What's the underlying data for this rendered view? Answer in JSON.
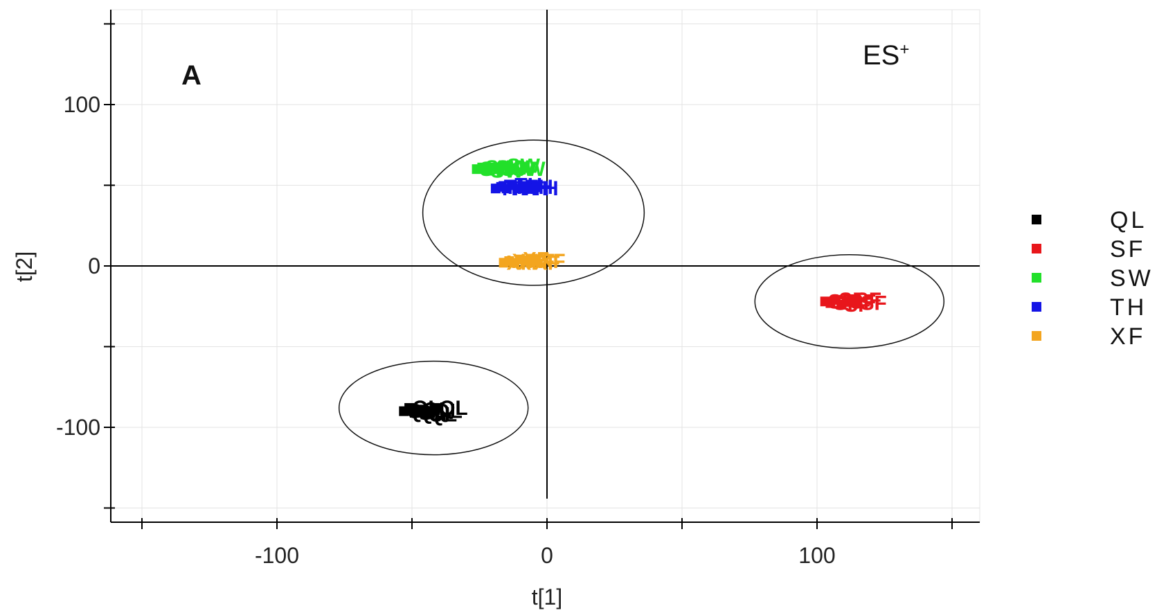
{
  "chart_data": {
    "type": "scatter",
    "panel_label": "A",
    "mode_label": {
      "base": "ES",
      "superscript": "+"
    },
    "xlabel": "t[1]",
    "ylabel": "t[2]",
    "xlim": [
      -160,
      160
    ],
    "ylim": [
      -160,
      160
    ],
    "x_ticks": [
      -100,
      0,
      100
    ],
    "y_ticks": [
      100,
      0,
      -100
    ],
    "x_tick_labels": [
      "-100",
      "0",
      "100"
    ],
    "y_tick_labels": [
      "100",
      "0",
      "-100"
    ],
    "x_minor_ticks": [
      -150,
      -50,
      50,
      150
    ],
    "y_minor_ticks": [
      150,
      50,
      -50,
      -150
    ],
    "grid": true,
    "legend_position": "right",
    "series": [
      {
        "name": "QL",
        "color": "#000000",
        "points": [
          [
            -53,
            -90
          ],
          [
            -51,
            -88
          ],
          [
            -49,
            -91
          ],
          [
            -47,
            -89
          ],
          [
            -45,
            -92
          ],
          [
            -43,
            -90
          ],
          [
            -41,
            -88
          ]
        ],
        "ellipse": {
          "cx": -42,
          "cy": -88,
          "rx": 35,
          "ry": 29
        }
      },
      {
        "name": "SF",
        "color": "#e8161b",
        "points": [
          [
            103,
            -22
          ],
          [
            105,
            -23
          ],
          [
            107,
            -21
          ],
          [
            109,
            -24
          ],
          [
            111,
            -22
          ],
          [
            113,
            -21
          ],
          [
            115,
            -23
          ]
        ],
        "ellipse": {
          "cx": 112,
          "cy": -22,
          "rx": 35,
          "ry": 29
        }
      },
      {
        "name": "SW",
        "color": "#22e02a",
        "points": [
          [
            -26,
            60
          ],
          [
            -24,
            61
          ],
          [
            -22,
            59
          ],
          [
            -20,
            61
          ],
          [
            -18,
            60
          ],
          [
            -16,
            62
          ],
          [
            -14,
            60
          ]
        ],
        "ellipse": null
      },
      {
        "name": "TH",
        "color": "#1414e6",
        "points": [
          [
            -19,
            48
          ],
          [
            -17,
            49
          ],
          [
            -15,
            48
          ],
          [
            -13,
            50
          ],
          [
            -11,
            48
          ],
          [
            -9,
            49
          ],
          [
            -7,
            48
          ]
        ],
        "ellipse": null
      },
      {
        "name": "XF",
        "color": "#f3a51f",
        "points": [
          [
            -16,
            2
          ],
          [
            -14,
            3
          ],
          [
            -12,
            2
          ],
          [
            -10,
            4
          ],
          [
            -8,
            3
          ],
          [
            -6,
            2
          ],
          [
            -4,
            3
          ]
        ],
        "ellipse": {
          "cx": -5,
          "cy": 33,
          "rx": 41,
          "ry": 45
        }
      }
    ]
  }
}
